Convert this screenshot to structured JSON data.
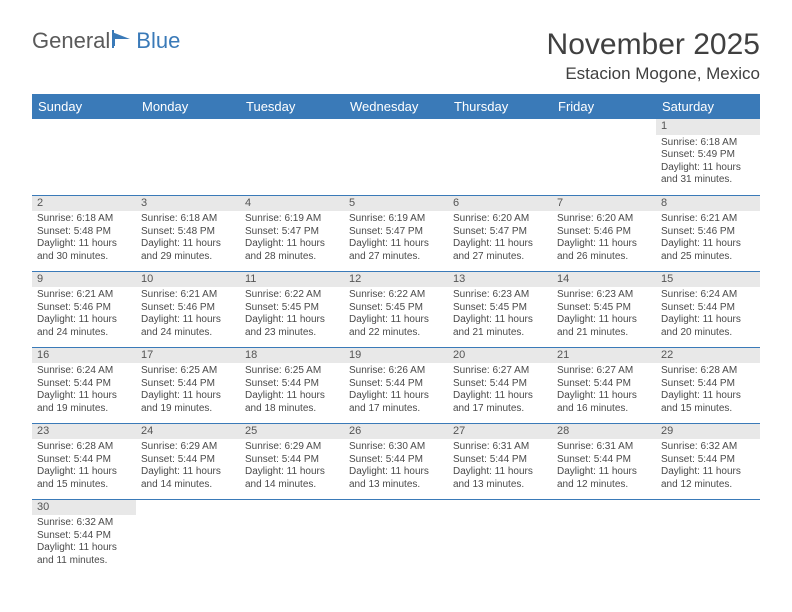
{
  "logo": {
    "text1": "General",
    "text2": "Blue"
  },
  "title": "November 2025",
  "location": "Estacion Mogone, Mexico",
  "colors": {
    "header_bg": "#3a7ab8",
    "header_fg": "#ffffff",
    "daynum_bg": "#e8e8e8",
    "cell_border": "#3a7ab8",
    "text": "#4a4a4a"
  },
  "weekdays": [
    "Sunday",
    "Monday",
    "Tuesday",
    "Wednesday",
    "Thursday",
    "Friday",
    "Saturday"
  ],
  "weeks": [
    [
      null,
      null,
      null,
      null,
      null,
      null,
      {
        "n": "1",
        "sr": "Sunrise: 6:18 AM",
        "ss": "Sunset: 5:49 PM",
        "dl1": "Daylight: 11 hours",
        "dl2": "and 31 minutes."
      }
    ],
    [
      {
        "n": "2",
        "sr": "Sunrise: 6:18 AM",
        "ss": "Sunset: 5:48 PM",
        "dl1": "Daylight: 11 hours",
        "dl2": "and 30 minutes."
      },
      {
        "n": "3",
        "sr": "Sunrise: 6:18 AM",
        "ss": "Sunset: 5:48 PM",
        "dl1": "Daylight: 11 hours",
        "dl2": "and 29 minutes."
      },
      {
        "n": "4",
        "sr": "Sunrise: 6:19 AM",
        "ss": "Sunset: 5:47 PM",
        "dl1": "Daylight: 11 hours",
        "dl2": "and 28 minutes."
      },
      {
        "n": "5",
        "sr": "Sunrise: 6:19 AM",
        "ss": "Sunset: 5:47 PM",
        "dl1": "Daylight: 11 hours",
        "dl2": "and 27 minutes."
      },
      {
        "n": "6",
        "sr": "Sunrise: 6:20 AM",
        "ss": "Sunset: 5:47 PM",
        "dl1": "Daylight: 11 hours",
        "dl2": "and 27 minutes."
      },
      {
        "n": "7",
        "sr": "Sunrise: 6:20 AM",
        "ss": "Sunset: 5:46 PM",
        "dl1": "Daylight: 11 hours",
        "dl2": "and 26 minutes."
      },
      {
        "n": "8",
        "sr": "Sunrise: 6:21 AM",
        "ss": "Sunset: 5:46 PM",
        "dl1": "Daylight: 11 hours",
        "dl2": "and 25 minutes."
      }
    ],
    [
      {
        "n": "9",
        "sr": "Sunrise: 6:21 AM",
        "ss": "Sunset: 5:46 PM",
        "dl1": "Daylight: 11 hours",
        "dl2": "and 24 minutes."
      },
      {
        "n": "10",
        "sr": "Sunrise: 6:21 AM",
        "ss": "Sunset: 5:46 PM",
        "dl1": "Daylight: 11 hours",
        "dl2": "and 24 minutes."
      },
      {
        "n": "11",
        "sr": "Sunrise: 6:22 AM",
        "ss": "Sunset: 5:45 PM",
        "dl1": "Daylight: 11 hours",
        "dl2": "and 23 minutes."
      },
      {
        "n": "12",
        "sr": "Sunrise: 6:22 AM",
        "ss": "Sunset: 5:45 PM",
        "dl1": "Daylight: 11 hours",
        "dl2": "and 22 minutes."
      },
      {
        "n": "13",
        "sr": "Sunrise: 6:23 AM",
        "ss": "Sunset: 5:45 PM",
        "dl1": "Daylight: 11 hours",
        "dl2": "and 21 minutes."
      },
      {
        "n": "14",
        "sr": "Sunrise: 6:23 AM",
        "ss": "Sunset: 5:45 PM",
        "dl1": "Daylight: 11 hours",
        "dl2": "and 21 minutes."
      },
      {
        "n": "15",
        "sr": "Sunrise: 6:24 AM",
        "ss": "Sunset: 5:44 PM",
        "dl1": "Daylight: 11 hours",
        "dl2": "and 20 minutes."
      }
    ],
    [
      {
        "n": "16",
        "sr": "Sunrise: 6:24 AM",
        "ss": "Sunset: 5:44 PM",
        "dl1": "Daylight: 11 hours",
        "dl2": "and 19 minutes."
      },
      {
        "n": "17",
        "sr": "Sunrise: 6:25 AM",
        "ss": "Sunset: 5:44 PM",
        "dl1": "Daylight: 11 hours",
        "dl2": "and 19 minutes."
      },
      {
        "n": "18",
        "sr": "Sunrise: 6:25 AM",
        "ss": "Sunset: 5:44 PM",
        "dl1": "Daylight: 11 hours",
        "dl2": "and 18 minutes."
      },
      {
        "n": "19",
        "sr": "Sunrise: 6:26 AM",
        "ss": "Sunset: 5:44 PM",
        "dl1": "Daylight: 11 hours",
        "dl2": "and 17 minutes."
      },
      {
        "n": "20",
        "sr": "Sunrise: 6:27 AM",
        "ss": "Sunset: 5:44 PM",
        "dl1": "Daylight: 11 hours",
        "dl2": "and 17 minutes."
      },
      {
        "n": "21",
        "sr": "Sunrise: 6:27 AM",
        "ss": "Sunset: 5:44 PM",
        "dl1": "Daylight: 11 hours",
        "dl2": "and 16 minutes."
      },
      {
        "n": "22",
        "sr": "Sunrise: 6:28 AM",
        "ss": "Sunset: 5:44 PM",
        "dl1": "Daylight: 11 hours",
        "dl2": "and 15 minutes."
      }
    ],
    [
      {
        "n": "23",
        "sr": "Sunrise: 6:28 AM",
        "ss": "Sunset: 5:44 PM",
        "dl1": "Daylight: 11 hours",
        "dl2": "and 15 minutes."
      },
      {
        "n": "24",
        "sr": "Sunrise: 6:29 AM",
        "ss": "Sunset: 5:44 PM",
        "dl1": "Daylight: 11 hours",
        "dl2": "and 14 minutes."
      },
      {
        "n": "25",
        "sr": "Sunrise: 6:29 AM",
        "ss": "Sunset: 5:44 PM",
        "dl1": "Daylight: 11 hours",
        "dl2": "and 14 minutes."
      },
      {
        "n": "26",
        "sr": "Sunrise: 6:30 AM",
        "ss": "Sunset: 5:44 PM",
        "dl1": "Daylight: 11 hours",
        "dl2": "and 13 minutes."
      },
      {
        "n": "27",
        "sr": "Sunrise: 6:31 AM",
        "ss": "Sunset: 5:44 PM",
        "dl1": "Daylight: 11 hours",
        "dl2": "and 13 minutes."
      },
      {
        "n": "28",
        "sr": "Sunrise: 6:31 AM",
        "ss": "Sunset: 5:44 PM",
        "dl1": "Daylight: 11 hours",
        "dl2": "and 12 minutes."
      },
      {
        "n": "29",
        "sr": "Sunrise: 6:32 AM",
        "ss": "Sunset: 5:44 PM",
        "dl1": "Daylight: 11 hours",
        "dl2": "and 12 minutes."
      }
    ],
    [
      {
        "n": "30",
        "sr": "Sunrise: 6:32 AM",
        "ss": "Sunset: 5:44 PM",
        "dl1": "Daylight: 11 hours",
        "dl2": "and 11 minutes."
      },
      null,
      null,
      null,
      null,
      null,
      null
    ]
  ]
}
